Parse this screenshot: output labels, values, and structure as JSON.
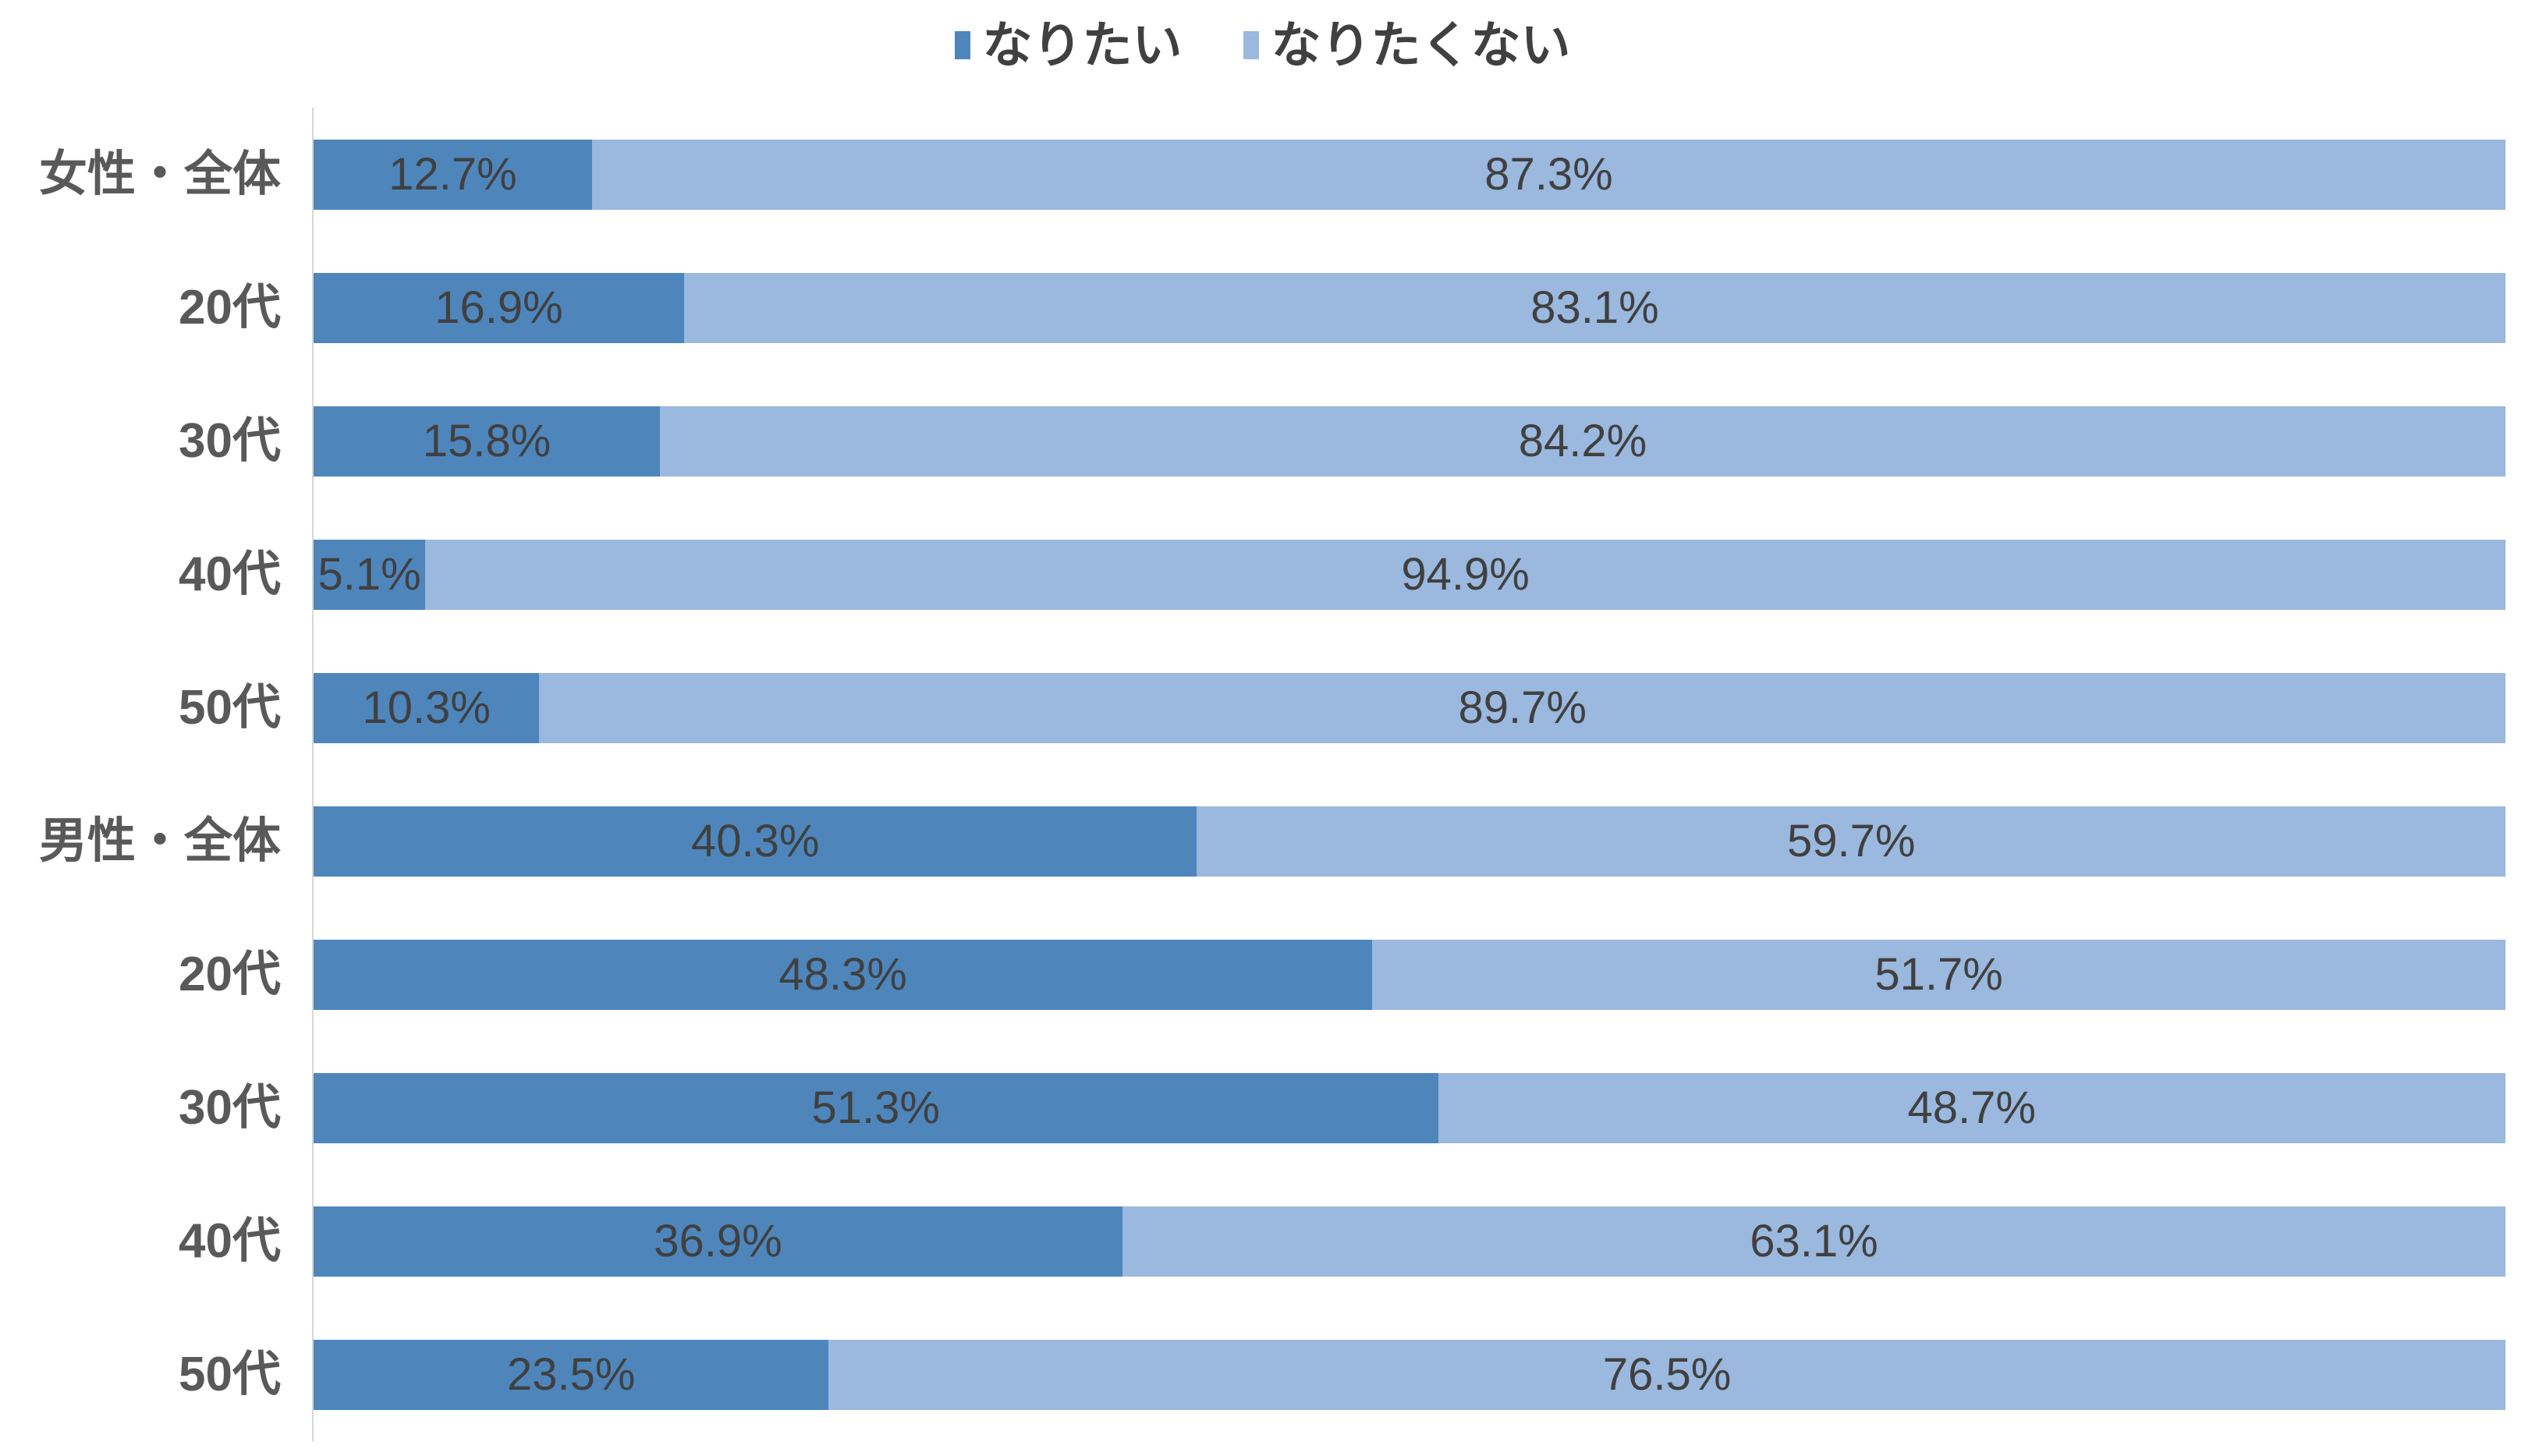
{
  "chart_data": {
    "type": "bar",
    "orientation": "horizontal",
    "stacked": true,
    "stacked_total": 100,
    "title": "",
    "xlabel": "",
    "ylabel": "",
    "xlim": [
      0,
      100
    ],
    "grid": false,
    "legend_position": "top",
    "categories": [
      "女性・全体",
      "20代",
      "30代",
      "40代",
      "50代",
      "男性・全体",
      "20代",
      "30代",
      "40代",
      "50代"
    ],
    "series": [
      {
        "name": "なりたい",
        "color": "#4e86bc",
        "values": [
          12.7,
          16.9,
          15.8,
          5.1,
          10.3,
          40.3,
          48.3,
          51.3,
          36.9,
          23.5
        ],
        "labels": [
          "12.7%",
          "16.9%",
          "15.8%",
          "5.1%",
          "10.3%",
          "40.3%",
          "48.3%",
          "51.3%",
          "36.9%",
          "23.5%"
        ]
      },
      {
        "name": "なりたくない",
        "color": "#9bb8de",
        "values": [
          87.3,
          83.1,
          84.2,
          94.9,
          89.7,
          59.7,
          51.7,
          48.7,
          63.1,
          76.5
        ],
        "labels": [
          "87.3%",
          "83.1%",
          "84.2%",
          "94.9%",
          "89.7%",
          "59.7%",
          "51.7%",
          "48.7%",
          "63.1%",
          "76.5%"
        ]
      }
    ],
    "data_label_color": "#404040",
    "category_label_color": "#595959",
    "axis_line_color": "#d6d6d6"
  }
}
